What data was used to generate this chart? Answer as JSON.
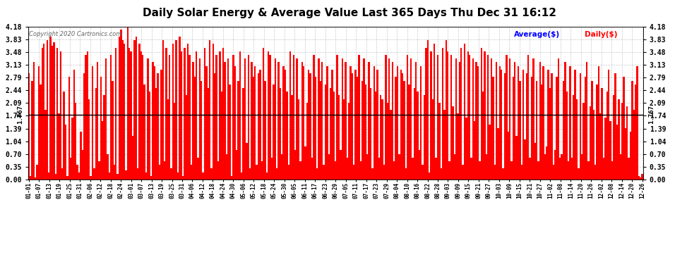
{
  "title": "Daily Solar Energy & Average Value Last 365 Days Thu Dec 31 16:12",
  "title_fontsize": 11,
  "copyright_text": "Copyright 2020 Cartronics.com",
  "legend_average": "Average($)",
  "legend_daily": "Daily($)",
  "average_value": 1.767,
  "bar_color": "#ff0000",
  "average_line_color": "#000000",
  "background_color": "#ffffff",
  "grid_color": "#aaaaaa",
  "yticks": [
    0.0,
    0.35,
    0.7,
    1.04,
    1.39,
    1.74,
    2.09,
    2.44,
    2.79,
    3.13,
    3.48,
    3.83,
    4.18
  ],
  "ylim": [
    0.0,
    4.18
  ],
  "x_tick_labels": [
    "01-01",
    "01-07",
    "01-13",
    "01-19",
    "01-25",
    "01-31",
    "02-06",
    "02-12",
    "02-18",
    "02-24",
    "03-01",
    "03-07",
    "03-13",
    "03-19",
    "03-25",
    "03-31",
    "04-06",
    "04-12",
    "04-18",
    "04-24",
    "04-30",
    "05-06",
    "05-12",
    "05-18",
    "05-24",
    "05-30",
    "06-05",
    "06-11",
    "06-17",
    "06-23",
    "06-29",
    "07-05",
    "07-11",
    "07-17",
    "07-23",
    "07-29",
    "08-04",
    "08-10",
    "08-16",
    "08-22",
    "08-28",
    "09-03",
    "09-09",
    "09-15",
    "09-21",
    "09-27",
    "10-03",
    "10-09",
    "10-15",
    "10-21",
    "10-27",
    "11-02",
    "11-08",
    "11-14",
    "11-20",
    "11-26",
    "12-02",
    "12-08",
    "12-14",
    "12-20",
    "12-26"
  ],
  "daily_values": [
    2.9,
    0.1,
    2.7,
    3.2,
    0.05,
    0.4,
    3.1,
    2.6,
    3.6,
    3.7,
    1.9,
    3.8,
    0.2,
    3.9,
    3.65,
    3.75,
    0.15,
    3.6,
    1.8,
    3.5,
    0.3,
    2.4,
    1.5,
    0.1,
    2.8,
    0.6,
    1.7,
    3.0,
    2.1,
    0.4,
    0.2,
    1.3,
    0.8,
    2.9,
    3.4,
    3.5,
    2.2,
    0.1,
    3.1,
    0.3,
    2.5,
    3.2,
    0.5,
    2.8,
    1.6,
    2.3,
    3.3,
    0.7,
    0.2,
    3.4,
    2.7,
    0.4,
    3.6,
    0.15,
    3.9,
    4.1,
    3.8,
    3.7,
    0.25,
    4.18,
    3.6,
    3.5,
    1.2,
    3.8,
    3.9,
    0.3,
    3.7,
    3.5,
    3.4,
    2.6,
    0.2,
    3.3,
    2.4,
    0.1,
    3.2,
    3.1,
    2.5,
    2.9,
    0.4,
    3.0,
    3.8,
    0.5,
    3.6,
    2.2,
    3.4,
    0.3,
    3.7,
    2.1,
    3.8,
    0.2,
    3.9,
    3.5,
    0.1,
    3.6,
    2.3,
    3.7,
    3.4,
    0.4,
    3.2,
    2.8,
    3.5,
    0.6,
    3.3,
    2.7,
    0.2,
    3.6,
    3.1,
    2.5,
    3.8,
    0.3,
    3.7,
    2.9,
    3.4,
    0.5,
    3.5,
    2.4,
    3.6,
    3.2,
    0.7,
    3.3,
    2.6,
    0.1,
    3.4,
    3.1,
    0.8,
    2.7,
    3.5,
    0.2,
    2.5,
    3.3,
    1.0,
    3.4,
    0.3,
    3.2,
    2.8,
    3.1,
    0.4,
    2.9,
    3.0,
    0.5,
    3.6,
    2.7,
    0.2,
    3.5,
    3.4,
    0.6,
    2.6,
    3.3,
    0.3,
    3.2,
    2.5,
    0.7,
    3.1,
    3.0,
    2.4,
    0.4,
    3.5,
    2.3,
    3.4,
    0.8,
    3.3,
    2.2,
    0.5,
    3.2,
    3.1,
    0.9,
    2.1,
    3.0,
    2.9,
    0.6,
    3.4,
    2.8,
    0.3,
    3.3,
    2.7,
    3.2,
    0.4,
    2.6,
    3.1,
    0.7,
    2.5,
    3.0,
    2.4,
    0.5,
    3.4,
    2.3,
    0.8,
    3.3,
    2.2,
    3.2,
    0.6,
    2.1,
    3.1,
    2.9,
    0.4,
    3.0,
    2.8,
    3.4,
    0.5,
    2.7,
    3.3,
    2.6,
    0.7,
    3.2,
    2.5,
    0.3,
    3.1,
    2.4,
    3.0,
    0.6,
    2.3,
    2.2,
    0.4,
    3.4,
    2.1,
    3.3,
    1.9,
    3.2,
    0.5,
    2.8,
    3.1,
    0.7,
    3.0,
    2.9,
    2.7,
    0.3,
    3.4,
    2.6,
    3.3,
    0.6,
    2.5,
    3.2,
    2.4,
    0.8,
    3.1,
    0.4,
    2.3,
    3.6,
    3.8,
    0.2,
    3.5,
    2.2,
    3.7,
    0.6,
    3.4,
    2.1,
    0.3,
    3.6,
    1.9,
    3.8,
    3.5,
    0.5,
    3.4,
    2.0,
    0.7,
    3.3,
    1.8,
    3.2,
    3.6,
    0.4,
    3.7,
    1.7,
    3.5,
    3.4,
    0.6,
    3.3,
    1.6,
    3.2,
    3.1,
    0.5,
    3.6,
    2.4,
    3.5,
    0.7,
    3.4,
    1.5,
    3.3,
    2.8,
    0.4,
    3.2,
    1.4,
    3.1,
    3.0,
    0.3,
    2.9,
    3.4,
    1.3,
    3.3,
    0.5,
    2.8,
    3.2,
    1.2,
    3.1,
    2.7,
    0.4,
    3.0,
    1.1,
    2.9,
    3.4,
    0.6,
    2.8,
    3.3,
    1.0,
    2.7,
    0.5,
    3.2,
    2.6,
    3.1,
    0.7,
    0.9,
    3.0,
    2.5,
    2.9,
    0.4,
    0.8,
    2.8,
    3.3,
    0.6,
    0.7,
    2.7,
    3.2,
    2.4,
    0.5,
    3.1,
    0.6,
    2.3,
    3.0,
    2.2,
    0.3,
    2.9,
    0.7,
    2.1,
    2.8,
    3.2,
    0.5,
    2.0,
    2.7,
    1.9,
    0.4,
    2.6,
    3.1,
    1.8,
    2.5,
    0.6,
    1.7,
    2.4,
    3.0,
    1.6,
    0.5,
    2.3,
    2.9,
    1.5,
    2.2,
    0.7,
    2.1,
    2.8,
    1.4,
    2.0,
    0.6,
    1.3,
    2.7,
    1.9,
    2.6,
    3.1,
    0.1,
    0.05,
    0.15
  ]
}
